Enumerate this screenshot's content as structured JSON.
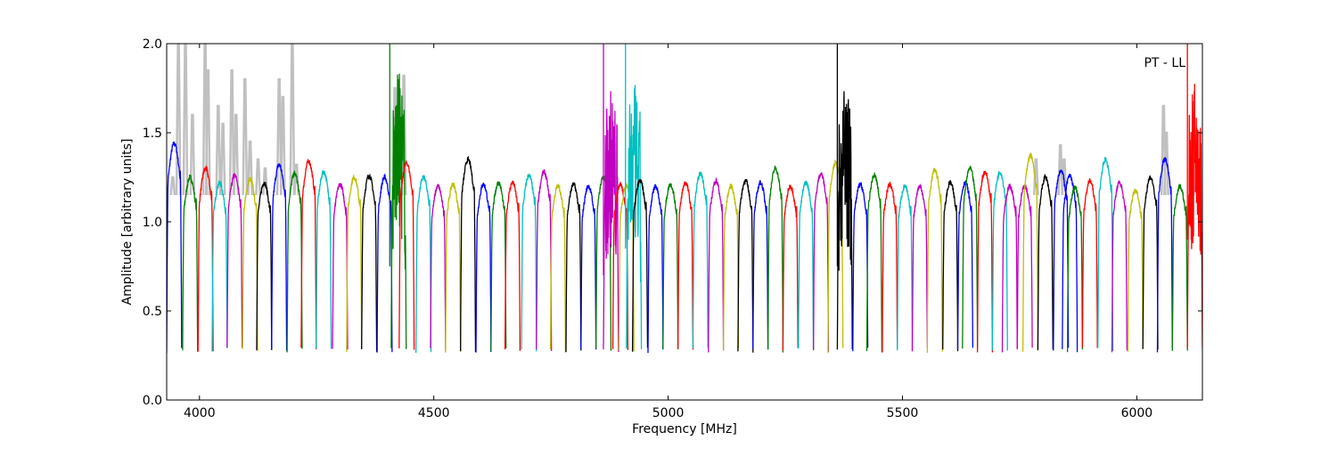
{
  "chart_data": {
    "type": "line",
    "title": "",
    "annotation": "PT - LL",
    "xlabel": "Frequency [MHz]",
    "ylabel": "Amplitude [arbitrary units]",
    "xlim": [
      3930,
      6140
    ],
    "ylim": [
      0.0,
      2.0
    ],
    "xticks": [
      4000,
      4500,
      5000,
      5500,
      6000
    ],
    "xtick_labels": [
      "4000",
      "4500",
      "5000",
      "5500",
      "6000"
    ],
    "yticks": [
      0.0,
      0.5,
      1.0,
      1.5,
      2.0
    ],
    "ytick_labels": [
      "0.0",
      "0.5",
      "1.0",
      "1.5",
      "2.0"
    ],
    "grid": false,
    "colors": {
      "b": "#0000ff",
      "g": "#008000",
      "r": "#ff0000",
      "c": "#00bfbf",
      "m": "#bf00bf",
      "y": "#bfbf00",
      "k": "#000000",
      "raw": "#c0c0c0"
    },
    "band_width_mhz": 32,
    "band_edge_level": 0.28,
    "segments": [
      [
        3930,
        "b",
        1.44,
        0
      ],
      [
        3964,
        "g",
        1.25,
        0
      ],
      [
        3997,
        "r",
        1.3,
        0
      ],
      [
        4027,
        "c",
        1.22,
        0
      ],
      [
        4059,
        "m",
        1.26,
        0
      ],
      [
        4092,
        "y",
        1.24,
        0
      ],
      [
        4122,
        "k",
        1.22,
        0
      ],
      [
        4154,
        "b",
        1.32,
        0
      ],
      [
        4187,
        "g",
        1.27,
        0
      ],
      [
        4217,
        "r",
        1.34,
        0
      ],
      [
        4249,
        "c",
        1.28,
        0
      ],
      [
        4284,
        "m",
        1.21,
        0
      ],
      [
        4314,
        "y",
        1.25,
        0
      ],
      [
        4346,
        "k",
        1.26,
        0
      ],
      [
        4379,
        "b",
        1.25,
        0
      ],
      [
        4409,
        "g",
        1.4,
        1
      ],
      [
        4426,
        "r",
        1.33,
        0
      ],
      [
        4462,
        "c",
        1.25,
        0
      ],
      [
        4493,
        "m",
        1.2,
        0
      ],
      [
        4525,
        "y",
        1.21,
        0
      ],
      [
        4557,
        "k",
        1.35,
        0
      ],
      [
        4590,
        "b",
        1.21,
        0
      ],
      [
        4622,
        "g",
        1.22,
        0
      ],
      [
        4652,
        "r",
        1.22,
        0
      ],
      [
        4687,
        "c",
        1.26,
        0
      ],
      [
        4719,
        "m",
        1.28,
        0
      ],
      [
        4749,
        "y",
        1.2,
        0
      ],
      [
        4782,
        "k",
        1.21,
        0
      ],
      [
        4814,
        "b",
        1.2,
        0
      ],
      [
        4846,
        "g",
        1.25,
        0
      ],
      [
        4862,
        "m",
        1.3,
        1
      ],
      [
        4882,
        "r",
        1.21,
        0
      ],
      [
        4895,
        "y",
        1.2,
        0
      ],
      [
        4911,
        "c",
        1.32,
        1
      ],
      [
        4924,
        "k",
        1.23,
        0
      ],
      [
        4957,
        "b",
        1.2,
        0
      ],
      [
        4989,
        "g",
        1.21,
        0
      ],
      [
        5021,
        "r",
        1.22,
        0
      ],
      [
        5053,
        "c",
        1.27,
        0
      ],
      [
        5086,
        "m",
        1.23,
        0
      ],
      [
        5118,
        "y",
        1.2,
        0
      ],
      [
        5149,
        "k",
        1.23,
        0
      ],
      [
        5181,
        "b",
        1.22,
        0
      ],
      [
        5213,
        "g",
        1.3,
        0
      ],
      [
        5245,
        "r",
        1.2,
        0
      ],
      [
        5278,
        "c",
        1.22,
        0
      ],
      [
        5310,
        "m",
        1.27,
        0
      ],
      [
        5341,
        "y",
        1.33,
        0
      ],
      [
        5361,
        "k",
        1.35,
        1
      ],
      [
        5394,
        "b",
        1.21,
        0
      ],
      [
        5424,
        "g",
        1.26,
        0
      ],
      [
        5457,
        "r",
        1.21,
        0
      ],
      [
        5489,
        "c",
        1.2,
        0
      ],
      [
        5521,
        "m",
        1.2,
        0
      ],
      [
        5553,
        "y",
        1.29,
        0
      ],
      [
        5586,
        "k",
        1.22,
        0
      ],
      [
        5618,
        "b",
        1.22,
        0
      ],
      [
        5628,
        "g",
        1.3,
        0
      ],
      [
        5660,
        "r",
        1.28,
        0
      ],
      [
        5692,
        "c",
        1.28,
        0
      ],
      [
        5713,
        "m",
        1.2,
        0
      ],
      [
        5745,
        "m",
        1.2,
        0
      ],
      [
        5757,
        "y",
        1.37,
        0
      ],
      [
        5789,
        "k",
        1.25,
        0
      ],
      [
        5822,
        "b",
        1.29,
        0
      ],
      [
        5841,
        "b",
        1.26,
        0
      ],
      [
        5852,
        "g",
        1.19,
        0
      ],
      [
        5884,
        "r",
        1.23,
        0
      ],
      [
        5917,
        "c",
        1.35,
        0
      ],
      [
        5947,
        "m",
        1.22,
        0
      ],
      [
        5981,
        "y",
        1.18,
        0
      ],
      [
        6013,
        "k",
        1.25,
        0
      ],
      [
        6044,
        "b",
        1.35,
        0
      ],
      [
        6076,
        "g",
        1.2,
        0
      ],
      [
        6108,
        "r",
        1.33,
        1
      ]
    ],
    "spikes": [
      [
        4406,
        "g",
        0.75,
        2.0
      ],
      [
        4862,
        "m",
        0.7,
        2.0
      ],
      [
        4909,
        "c",
        0.85,
        2.0
      ],
      [
        5361,
        "k",
        0.75,
        2.0
      ],
      [
        6108,
        "r",
        0.9,
        2.0
      ]
    ],
    "raw_peaks": [
      [
        3943,
        1.25
      ],
      [
        3955,
        2.0
      ],
      [
        3970,
        2.0
      ],
      [
        3985,
        1.6
      ],
      [
        4012,
        2.0
      ],
      [
        4018,
        1.85
      ],
      [
        4040,
        1.65
      ],
      [
        4050,
        1.55
      ],
      [
        4069,
        1.85
      ],
      [
        4078,
        1.6
      ],
      [
        4097,
        1.8
      ],
      [
        4108,
        1.45
      ],
      [
        4125,
        1.35
      ],
      [
        4140,
        1.3
      ],
      [
        4170,
        1.8
      ],
      [
        4178,
        1.7
      ],
      [
        4198,
        2.0
      ],
      [
        4207,
        1.32
      ],
      [
        4417,
        1.75
      ],
      [
        4436,
        1.82
      ],
      [
        5785,
        1.35
      ],
      [
        5837,
        1.43
      ],
      [
        5845,
        1.35
      ],
      [
        6057,
        1.65
      ],
      [
        6063,
        1.5
      ],
      [
        6118,
        1.35
      ]
    ]
  }
}
